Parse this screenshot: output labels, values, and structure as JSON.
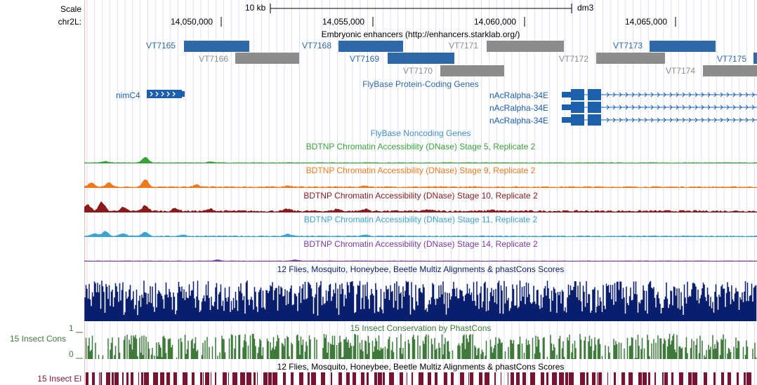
{
  "ruler": {
    "scale_label": "Scale",
    "chrom_label": "chr2L:",
    "scale_bar_text": "10 kb",
    "assembly": "dm3",
    "ticks": [
      "14,050,000",
      "14,055,000",
      "14,060,000",
      "14,065,000"
    ]
  },
  "enhancers_track": {
    "title": "Embryonic enhancers (http://enhancers.starklab.org/)",
    "items": [
      {
        "name": "VT7165",
        "active": true
      },
      {
        "name": "VT7166",
        "active": false
      },
      {
        "name": "VT7168",
        "active": true
      },
      {
        "name": "VT7169",
        "active": true
      },
      {
        "name": "VT7170",
        "active": false
      },
      {
        "name": "VT7171",
        "active": false
      },
      {
        "name": "VT7172",
        "active": false
      },
      {
        "name": "VT7173",
        "active": true
      },
      {
        "name": "VT7174",
        "active": false
      },
      {
        "name": "VT7175",
        "active": true
      }
    ]
  },
  "coding_genes_track": {
    "title": "FlyBase Protein-Coding Genes",
    "genes": [
      "nimC4",
      "nAcRalpha-34E",
      "nAcRalpha-34E",
      "nAcRalpha-34E"
    ]
  },
  "noncoding_genes_track": {
    "title": "FlyBase Noncoding Genes"
  },
  "dnase_tracks": [
    {
      "title": "BDTNP Chromatin Accessibility (DNase) Stage 5, Replicate 2",
      "color": "#3aa336"
    },
    {
      "title": "BDTNP Chromatin Accessibility (DNase) Stage 9, Replicate 2",
      "color": "#ee7a1d"
    },
    {
      "title": "BDTNP Chromatin Accessibility (DNase) Stage 10, Replicate 2",
      "color": "#8b1a1a"
    },
    {
      "title": "BDTNP Chromatin Accessibility (DNase) Stage 11, Replicate 2",
      "color": "#3ea3cf"
    },
    {
      "title": "BDTNP Chromatin Accessibility (DNase) Stage 14, Replicate 2",
      "color": "#7a3e9d"
    }
  ],
  "multiz_track": {
    "title": "12 Flies, Mosquito, Honeybee, Beetle Multiz Alignments & phastCons Scores",
    "color": "#0a1e6e"
  },
  "phastcons_track": {
    "title": "15 Insect Conservation by PhastCons",
    "left_label": "15 Insect Cons",
    "axis_max": "1",
    "axis_min": "0",
    "color": "#3f7a3a"
  },
  "elements_track": {
    "title": "12 Flies, Mosquito, Honeybee, Beetle Multiz Alignments & phastCons Scores",
    "left_label": "15 Insect El",
    "color": "#7a1232"
  },
  "colors": {
    "feature_blue": "#2f68a8",
    "feature_gray": "#8c8c8c",
    "label_gray": "#8c8c8c",
    "gene_blue": "#1b5fad",
    "track_title_blue": "#2f68a8",
    "noncoding_title": "#3f8fd0"
  }
}
